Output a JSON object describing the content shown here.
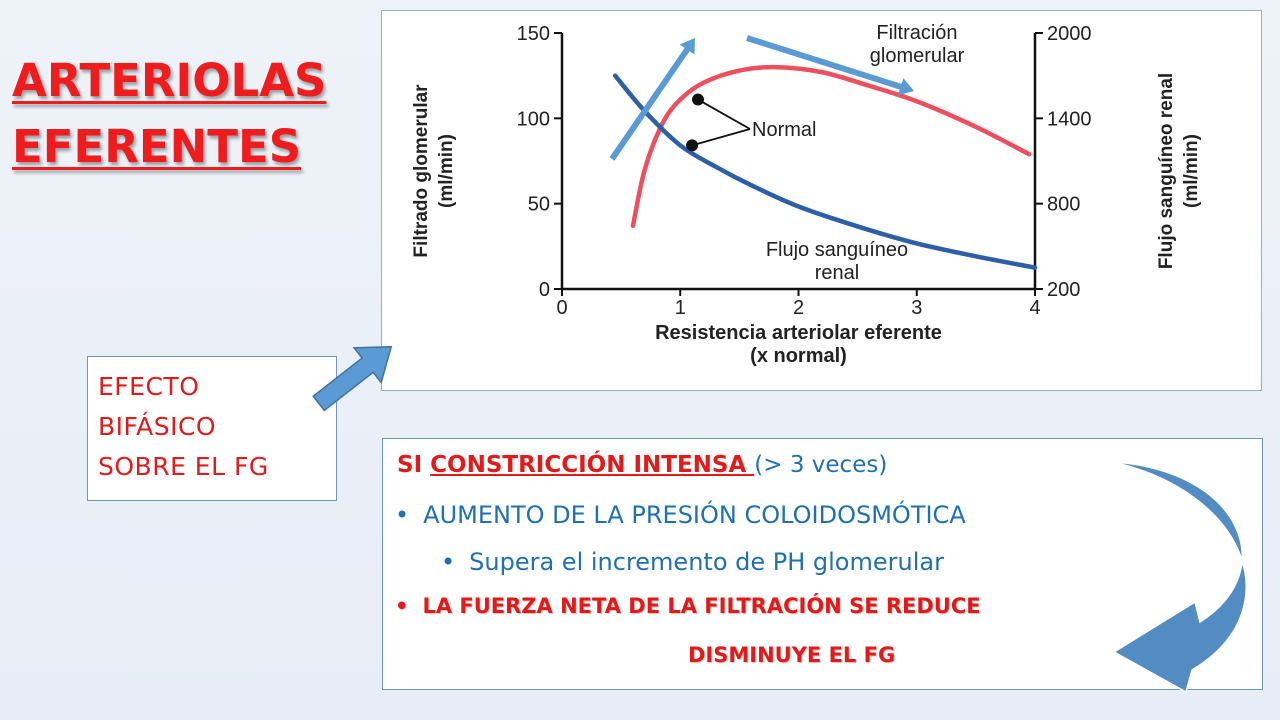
{
  "title": {
    "line1": "ARTERIOLAS",
    "line2": "EFERENTES"
  },
  "efecto_box": {
    "line1": "EFECTO",
    "line2": "BIFÁSICO",
    "line3": "SOBRE EL FG"
  },
  "text_box": {
    "line1_prefix": "SI ",
    "line1_underlined": "CONSTRICCIÓN INTENSA ",
    "line1_suffix": "(> 3 veces)",
    "bullet": "•",
    "line2": "AUMENTO DE LA PRESIÓN COLOIDOSMÓTICA",
    "line3": "Supera el incremento de PH glomerular",
    "line4": "LA FUERZA NETA DE LA FILTRACIÓN SE REDUCE",
    "line5": "DISMINUYE EL FG"
  },
  "colors": {
    "title_red": "#ee1c1c",
    "text_red": "#e21a1a",
    "text_blue": "#1f6fb4",
    "gfr_curve": "#ee4f5e",
    "rbf_curve": "#2d5ea8",
    "arrow_blue": "#5b9bd5",
    "curved_arrow": "#4a86c0"
  },
  "chart_data": {
    "type": "line",
    "xlabel_line1": "Resistencia arteriolar eferente",
    "xlabel_line2": "(x normal)",
    "ylabel_left_line1": "Filtrado glomerular",
    "ylabel_left_line2": "(ml/min)",
    "ylabel_right_line1": "Flujo sanguíneo renal",
    "ylabel_right_line2": "(ml/min)",
    "xlim": [
      0,
      4
    ],
    "ylim_left": [
      0,
      150
    ],
    "ylim_right": [
      200,
      2000
    ],
    "x_ticks": [
      "0",
      "1",
      "2",
      "3",
      "4"
    ],
    "y_left_ticks": [
      "0",
      "50",
      "100",
      "150"
    ],
    "y_right_ticks": [
      "200",
      "800",
      "1400",
      "2000"
    ],
    "grid": false,
    "series": [
      {
        "name_line1": "Filtración",
        "name_line2": "glomerular",
        "axis": "left",
        "color": "#ee4f5e",
        "x": [
          0.6,
          0.7,
          0.85,
          1.0,
          1.2,
          1.5,
          1.8,
          2.2,
          2.6,
          3.0,
          3.5,
          3.95
        ],
        "y": [
          37,
          70,
          97,
          111,
          121,
          128,
          130,
          127,
          119,
          110,
          95,
          79
        ]
      },
      {
        "name_line1": "Flujo sanguíneo",
        "name_line2": "renal",
        "axis": "right",
        "color": "#2d5ea8",
        "x": [
          0.45,
          0.7,
          1.0,
          1.3,
          1.6,
          2.0,
          2.5,
          3.0,
          3.5,
          4.0
        ],
        "y": [
          1700,
          1450,
          1210,
          1060,
          930,
          780,
          640,
          520,
          430,
          350
        ]
      }
    ],
    "annotation": {
      "label": "Normal",
      "points": [
        {
          "series": "Filtración glomerular",
          "x": 1.15,
          "y": 111
        },
        {
          "series": "Flujo sanguíneo renal",
          "x": 1.1,
          "y": 1210
        }
      ]
    }
  }
}
